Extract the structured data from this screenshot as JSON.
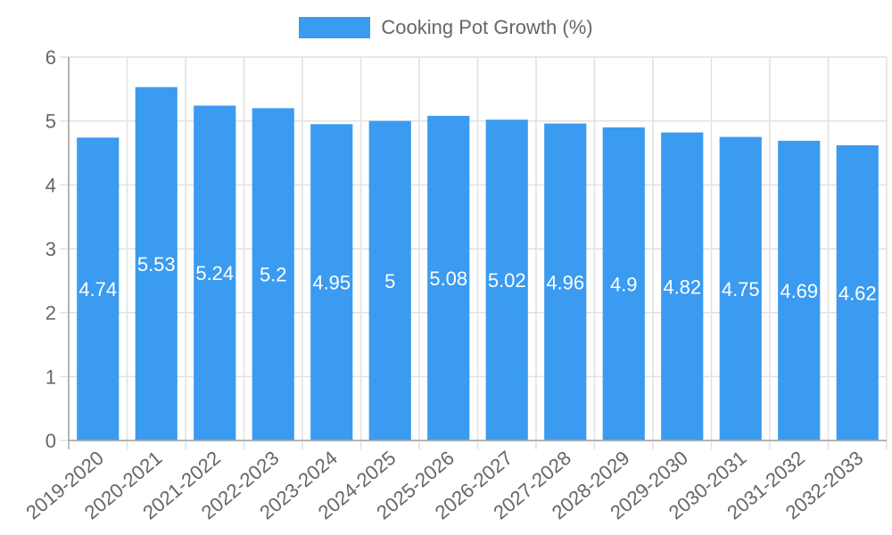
{
  "legend": {
    "label": "Cooking Pot Growth (%)",
    "color": "#3a9bf0"
  },
  "chart_data": {
    "type": "bar",
    "title": "",
    "xlabel": "",
    "ylabel": "",
    "ylim": [
      0,
      6
    ],
    "yticks": [
      0,
      1,
      2,
      3,
      4,
      5,
      6
    ],
    "grid": true,
    "legend_position": "top",
    "categories": [
      "2019-2020",
      "2020-2021",
      "2021-2022",
      "2022-2023",
      "2023-2024",
      "2024-2025",
      "2025-2026",
      "2026-2027",
      "2027-2028",
      "2028-2029",
      "2029-2030",
      "2030-2031",
      "2031-2032",
      "2032-2033"
    ],
    "series": [
      {
        "name": "Cooking Pot Growth (%)",
        "color": "#3a9bf0",
        "values": [
          4.74,
          5.53,
          5.24,
          5.2,
          4.95,
          5,
          5.08,
          5.02,
          4.96,
          4.9,
          4.82,
          4.75,
          4.69,
          4.62
        ],
        "data_labels": [
          "4.74",
          "5.53",
          "5.24",
          "5.2",
          "4.95",
          "5",
          "5.08",
          "5.02",
          "4.96",
          "4.9",
          "4.82",
          "4.75",
          "4.69",
          "4.62"
        ]
      }
    ]
  }
}
